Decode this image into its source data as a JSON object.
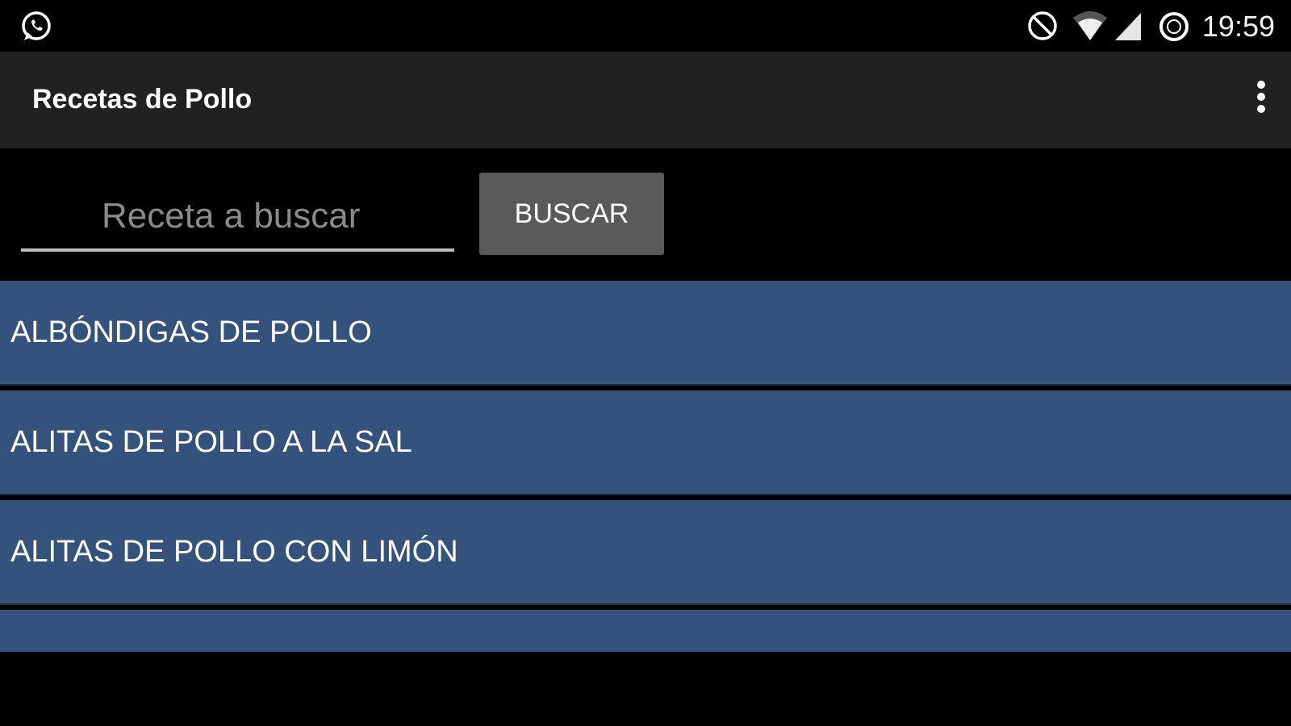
{
  "status_bar": {
    "time": "19:59",
    "icons": [
      "whatsapp-icon",
      "do-not-disturb-icon",
      "wifi-icon",
      "signal-icon",
      "data-saver-icon"
    ]
  },
  "app_bar": {
    "title": "Recetas de Pollo",
    "menu_icon": "more-vert-icon"
  },
  "search": {
    "placeholder": "Receta a buscar",
    "value": "",
    "button_label": "BUSCAR"
  },
  "recipes": [
    "ALBÓNDIGAS DE POLLO",
    "ALITAS DE POLLO A LA SAL",
    "ALITAS DE POLLO CON LIMÓN",
    ""
  ],
  "colors": {
    "row_bg": "#34527b",
    "app_bar": "#212121",
    "button": "#5a5a5a"
  }
}
